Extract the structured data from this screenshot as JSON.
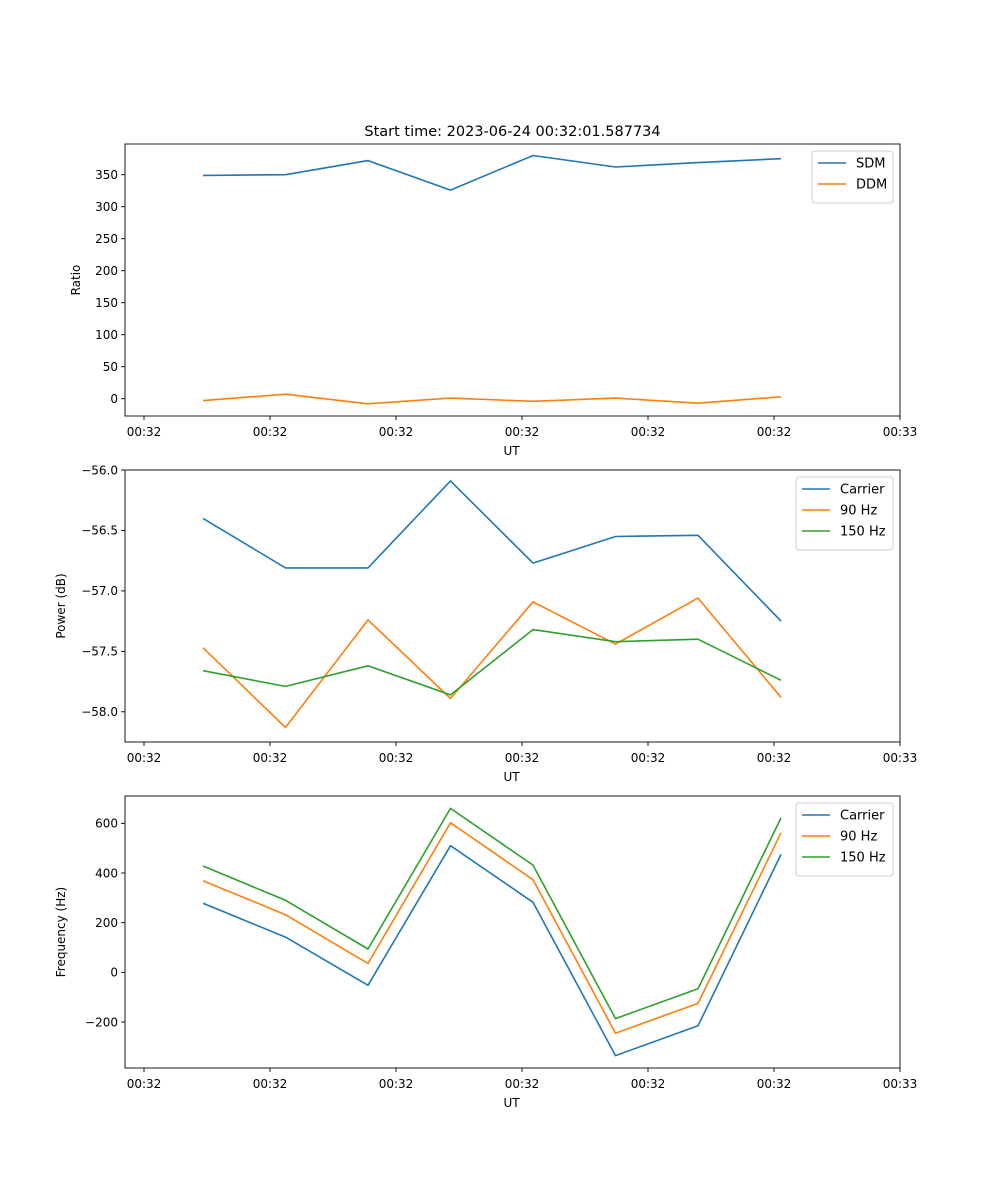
{
  "figure_title": "Start time: 2023-06-24 00:32:01.587734",
  "colors": {
    "blue": "#1f77b4",
    "orange": "#ff7f0e",
    "green": "#2ca02c"
  },
  "chart_data": [
    {
      "type": "line",
      "title": "Start time: 2023-06-24 00:32:01.587734",
      "xlabel": "UT",
      "ylabel": "Ratio",
      "x_tick_labels": [
        "00:32",
        "00:32",
        "00:32",
        "00:32",
        "00:32",
        "00:32",
        "00:32"
      ],
      "x_last_tick_label": "00:33",
      "y_ticks": [
        0,
        50,
        100,
        150,
        200,
        250,
        300,
        350
      ],
      "ylim": [
        -27,
        398
      ],
      "legend_position": "top-right",
      "grid": false,
      "series": [
        {
          "name": "SDM",
          "color": "#1f77b4",
          "values": [
            349,
            350,
            372,
            326,
            380,
            362,
            369,
            375
          ]
        },
        {
          "name": "DDM",
          "color": "#ff7f0e",
          "values": [
            -3,
            7,
            -8,
            1,
            -4,
            1,
            -7,
            3
          ]
        }
      ]
    },
    {
      "type": "line",
      "title": "",
      "xlabel": "UT",
      "ylabel": "Power (dB)",
      "x_tick_labels": [
        "00:32",
        "00:32",
        "00:32",
        "00:32",
        "00:32",
        "00:32",
        "00:32"
      ],
      "x_last_tick_label": "00:33",
      "y_ticks": [
        -58.0,
        -57.5,
        -57.0,
        -56.5,
        -56.0
      ],
      "ylim": [
        -58.25,
        -56.0
      ],
      "legend_position": "top-right",
      "grid": false,
      "series": [
        {
          "name": "Carrier",
          "color": "#1f77b4",
          "values": [
            -56.4,
            -56.81,
            -56.81,
            -56.09,
            -56.77,
            -56.55,
            -56.54,
            -57.25
          ]
        },
        {
          "name": "90 Hz",
          "color": "#ff7f0e",
          "values": [
            -57.47,
            -58.13,
            -57.24,
            -57.89,
            -57.09,
            -57.44,
            -57.06,
            -57.88
          ]
        },
        {
          "name": "150 Hz",
          "color": "#2ca02c",
          "values": [
            -57.66,
            -57.79,
            -57.62,
            -57.86,
            -57.32,
            -57.42,
            -57.4,
            -57.74
          ]
        }
      ]
    },
    {
      "type": "line",
      "title": "",
      "xlabel": "UT",
      "ylabel": "Frequency (Hz)",
      "x_tick_labels": [
        "00:32",
        "00:32",
        "00:32",
        "00:32",
        "00:32",
        "00:32",
        "00:32"
      ],
      "x_last_tick_label": "00:33",
      "y_ticks": [
        -200,
        0,
        200,
        400,
        600
      ],
      "ylim": [
        -385,
        710
      ],
      "legend_position": "top-right",
      "grid": false,
      "series": [
        {
          "name": "Carrier",
          "color": "#1f77b4",
          "values": [
            278,
            142,
            -52,
            510,
            282,
            -335,
            -215,
            475
          ]
        },
        {
          "name": "90 Hz",
          "color": "#ff7f0e",
          "values": [
            369,
            232,
            36,
            602,
            373,
            -245,
            -125,
            562
          ]
        },
        {
          "name": "150 Hz",
          "color": "#2ca02c",
          "values": [
            428,
            290,
            94,
            660,
            432,
            -186,
            -66,
            622
          ]
        }
      ]
    }
  ]
}
